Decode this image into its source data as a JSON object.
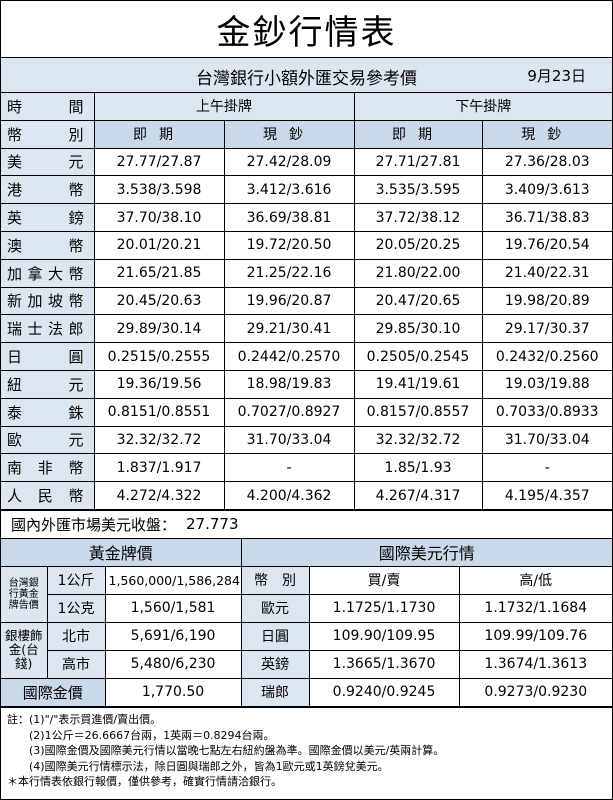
{
  "title": "金鈔行情表",
  "subtitle": "台灣銀行小額外匯交易參考價",
  "date": "9月23日",
  "rates": {
    "header": {
      "time_label": "時　間",
      "currency_label": "幣　別",
      "am": "上午掛牌",
      "pm": "下午掛牌",
      "spot": "即期",
      "cash": "現鈔"
    },
    "rows": [
      {
        "name": "美元",
        "am_spot": "27.77/27.87",
        "am_cash": "27.42/28.09",
        "pm_spot": "27.71/27.81",
        "pm_cash": "27.36/28.03"
      },
      {
        "name": "港幣",
        "am_spot": "3.538/3.598",
        "am_cash": "3.412/3.616",
        "pm_spot": "3.535/3.595",
        "pm_cash": "3.409/3.613"
      },
      {
        "name": "英鎊",
        "am_spot": "37.70/38.10",
        "am_cash": "36.69/38.81",
        "pm_spot": "37.72/38.12",
        "pm_cash": "36.71/38.83"
      },
      {
        "name": "澳幣",
        "am_spot": "20.01/20.21",
        "am_cash": "19.72/20.50",
        "pm_spot": "20.05/20.25",
        "pm_cash": "19.76/20.54"
      },
      {
        "name": "加拿大幣",
        "am_spot": "21.65/21.85",
        "am_cash": "21.25/22.16",
        "pm_spot": "21.80/22.00",
        "pm_cash": "21.40/22.31"
      },
      {
        "name": "新加坡幣",
        "am_spot": "20.45/20.63",
        "am_cash": "19.96/20.87",
        "pm_spot": "20.47/20.65",
        "pm_cash": "19.98/20.89"
      },
      {
        "name": "瑞士法郎",
        "am_spot": "29.89/30.14",
        "am_cash": "29.21/30.41",
        "pm_spot": "29.85/30.10",
        "pm_cash": "29.17/30.37"
      },
      {
        "name": "日圓",
        "am_spot": "0.2515/0.2555",
        "am_cash": "0.2442/0.2570",
        "pm_spot": "0.2505/0.2545",
        "pm_cash": "0.2432/0.2560"
      },
      {
        "name": "紐元",
        "am_spot": "19.36/19.56",
        "am_cash": "18.98/19.83",
        "pm_spot": "19.41/19.61",
        "pm_cash": "19.03/19.88"
      },
      {
        "name": "泰銖",
        "am_spot": "0.8151/0.8551",
        "am_cash": "0.7027/0.8927",
        "pm_spot": "0.8157/0.8557",
        "pm_cash": "0.7033/0.8933"
      },
      {
        "name": "歐元",
        "am_spot": "32.32/32.72",
        "am_cash": "31.70/33.04",
        "pm_spot": "32.32/32.72",
        "pm_cash": "31.70/33.04"
      },
      {
        "name": "南非幣",
        "am_spot": "1.837/1.917",
        "am_cash": "-",
        "pm_spot": "1.85/1.93",
        "pm_cash": "-"
      },
      {
        "name": "人民幣",
        "am_spot": "4.272/4.322",
        "am_cash": "4.200/4.362",
        "pm_spot": "4.267/4.317",
        "pm_cash": "4.195/4.357"
      }
    ]
  },
  "usd_close": {
    "label": "國內外匯市場美元收盤：",
    "value": "27.773"
  },
  "gold": {
    "title": "黃金牌價",
    "bank_label": "台灣銀行黃金牌告價",
    "unit_kg": "1公斤",
    "price_kg": "1,560,000/1,586,284",
    "unit_g": "1公克",
    "price_g": "1,560/1,581",
    "shop_label": "銀樓飾金(台錢)",
    "north": "北市",
    "north_price": "5,691/6,190",
    "kaohsiung": "高市",
    "kaohsiung_price": "5,480/6,230",
    "intl_label": "國際金價",
    "intl_price": "1,770.50"
  },
  "intl_usd": {
    "title": "國際美元行情",
    "col_currency": "幣　別",
    "col_bid": "買/賣",
    "col_hilo": "高/低",
    "rows": [
      {
        "name": "歐元",
        "bid": "1.1725/1.1730",
        "hilo": "1.1732/1.1684"
      },
      {
        "name": "日圓",
        "bid": "109.90/109.95",
        "hilo": "109.99/109.76"
      },
      {
        "name": "英鎊",
        "bid": "1.3665/1.3670",
        "hilo": "1.3674/1.3613"
      },
      {
        "name": "瑞郎",
        "bid": "0.9240/0.9245",
        "hilo": "0.9273/0.9230"
      }
    ]
  },
  "notes": [
    "註：(1)\"/\"表示買進價/賣出價。",
    "(2)1公斤＝26.6667台兩，1英兩＝0.8294台兩。",
    "(3)國際金價及國際美元行情以當晚七點左右紐約盤為準。國際金價以美元/英兩計算。",
    "(4)國際美元行情標示法，除日圓與瑞郎之外，皆為1歐元或1英鎊兌美元。",
    "＊本行情表依銀行報價，僅供參考，確實行情請洽銀行。"
  ]
}
